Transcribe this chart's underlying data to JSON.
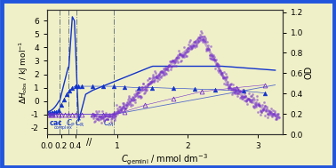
{
  "background_color": "#f0f0c8",
  "border_color": "#2255dd",
  "xlim": [
    0.0,
    3.35
  ],
  "ylim_left": [
    -2.5,
    6.8
  ],
  "ylim_right": [
    0.0,
    1.22
  ],
  "xlabel": "$C_{\\mathrm{gemini}}$ / mmol dm$^{-3}$",
  "ylabel_left": "$\\Delta H_{\\mathrm{obs}}$ / kJ mol$^{-1}$",
  "ylabel_right": "OD",
  "vlines_x": [
    0.18,
    0.31,
    0.42,
    0.95
  ],
  "vline_colors": [
    "#555577",
    "#555577",
    "#555577",
    "#555577"
  ],
  "xticks": [
    0.0,
    0.2,
    0.4,
    1.0,
    2.0,
    3.0
  ],
  "xtick_labels": [
    "0.0",
    "0.2",
    "0.4",
    "1",
    "2",
    "3"
  ],
  "yticks_left": [
    -2,
    -1,
    0,
    1,
    2,
    3,
    4,
    5,
    6
  ],
  "yticks_right": [
    0.0,
    0.2,
    0.4,
    0.6,
    0.8,
    1.0,
    1.2
  ],
  "blue_color": "#1133cc",
  "purple_color": "#7733cc",
  "purple_light": "#9955cc",
  "gray_color": "#888888"
}
